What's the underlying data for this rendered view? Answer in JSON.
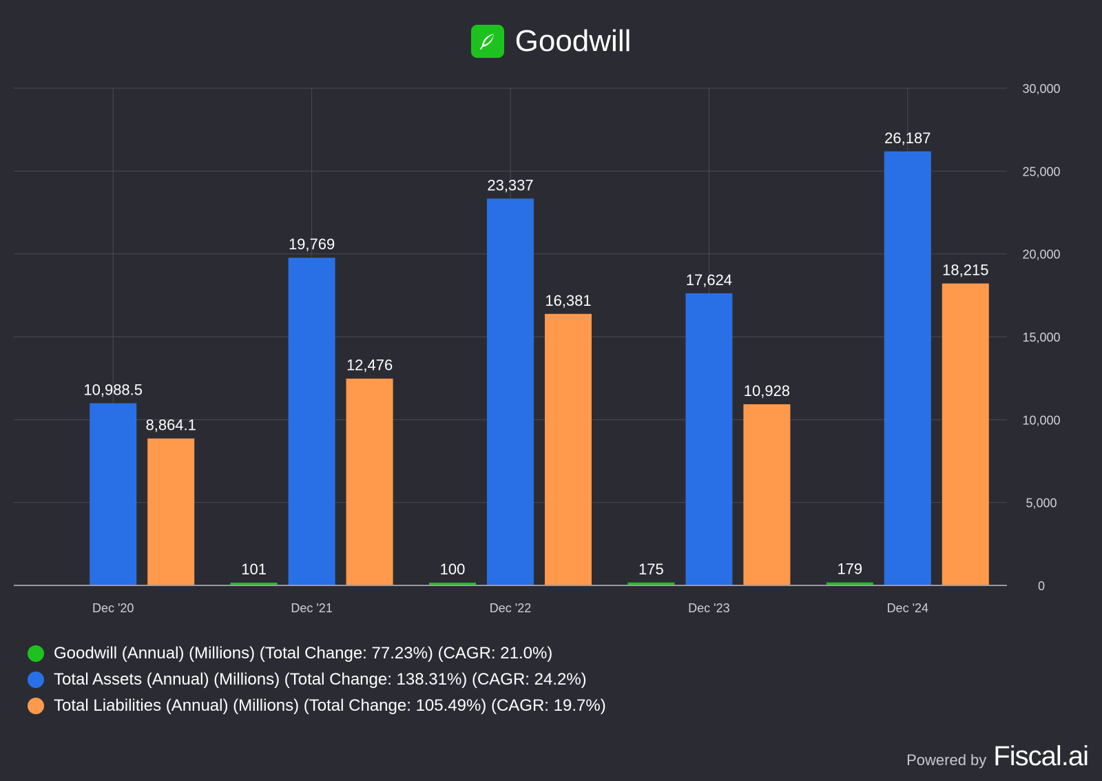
{
  "header": {
    "title": "Goodwill",
    "logo_icon": "feather-icon"
  },
  "colors": {
    "goodwill": "#1ec21e",
    "assets": "#2970e6",
    "liabilities": "#ff9a4d",
    "background": "#2b2c33",
    "grid": "#4a4b52"
  },
  "chart_data": {
    "type": "bar",
    "title": "Goodwill",
    "categories": [
      "Dec '20",
      "Dec '21",
      "Dec '22",
      "Dec '23",
      "Dec '24"
    ],
    "series": [
      {
        "name": "Goodwill (Annual) (Millions) (Total Change: 77.23%) (CAGR: 21.0%)",
        "values": [
          null,
          101,
          100,
          175,
          179
        ],
        "labels": [
          "",
          "101",
          "100",
          "175",
          "179"
        ],
        "color": "#1ec21e"
      },
      {
        "name": "Total Assets (Annual) (Millions) (Total Change: 138.31%) (CAGR: 24.2%)",
        "values": [
          10988.5,
          19769,
          23337,
          17624,
          26187
        ],
        "labels": [
          "10,988.5",
          "19,769",
          "23,337",
          "17,624",
          "26,187"
        ],
        "color": "#2970e6"
      },
      {
        "name": "Total Liabilities (Annual) (Millions) (Total Change: 105.49%) (CAGR: 19.7%)",
        "values": [
          8864.1,
          12476,
          16381,
          10928,
          18215
        ],
        "labels": [
          "8,864.1",
          "12,476",
          "16,381",
          "10,928",
          "18,215"
        ],
        "color": "#ff9a4d"
      }
    ],
    "yticks": [
      0,
      5000,
      10000,
      15000,
      20000,
      25000,
      30000
    ],
    "ytick_labels": [
      "0",
      "5,000",
      "10,000",
      "15,000",
      "20,000",
      "25,000",
      "30,000"
    ],
    "ylim": [
      0,
      30000
    ],
    "y_axis_side": "right",
    "grid": true,
    "legend_position": "bottom-left"
  },
  "footer": {
    "powered_by": "Powered by",
    "brand": "Fiscal.ai"
  }
}
